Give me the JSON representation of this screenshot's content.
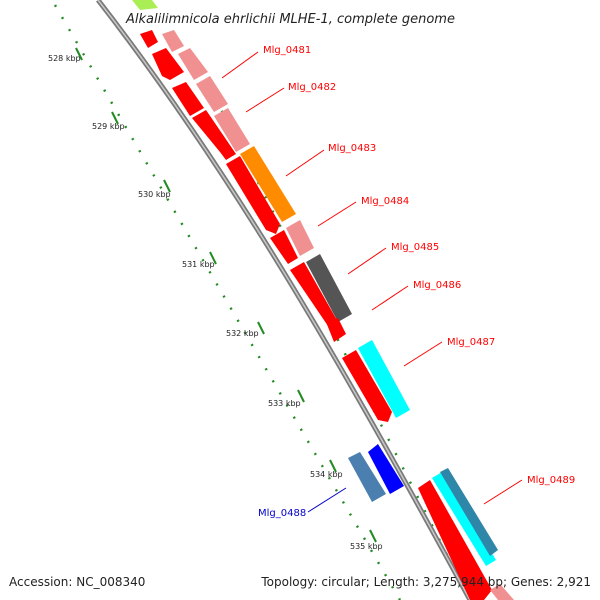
{
  "title": "Alkalilimnicola ehrlichii MLHE-1, complete genome",
  "footer": {
    "accession": "Accession: NC_008340",
    "topology": "Topology: circular; Length: 3,275,944 bp; Genes: 2,921"
  },
  "ticks": [
    "528 kbp",
    "529 kbp",
    "530 kbp",
    "531 kbp",
    "532 kbp",
    "533 kbp",
    "534 kbp",
    "535 kbp"
  ],
  "genes": [
    {
      "label": "Mlg_0481",
      "color": "#ff0000"
    },
    {
      "label": "Mlg_0482",
      "color": "#ff0000"
    },
    {
      "label": "Mlg_0483",
      "color": "#ff0000"
    },
    {
      "label": "Mlg_0484",
      "color": "#ff0000"
    },
    {
      "label": "Mlg_0485",
      "color": "#ff0000"
    },
    {
      "label": "Mlg_0486",
      "color": "#ff0000"
    },
    {
      "label": "Mlg_0487",
      "color": "#ff0000"
    },
    {
      "label": "Mlg_0488",
      "color": "#0000cc"
    },
    {
      "label": "Mlg_0489",
      "color": "#ff0000"
    }
  ],
  "colors": {
    "backbone": "#888888",
    "cds": "#ff0000",
    "cds_light": "#f09090",
    "orange": "#ff8c00",
    "dark_gray": "#555555",
    "cyan": "#00ffff",
    "blue": "#0000ff",
    "steel_blue": "#4a7fb0",
    "teal_blue": "#2e86a8",
    "dotted_green": "#228b22",
    "light_green": "#aaee55"
  }
}
